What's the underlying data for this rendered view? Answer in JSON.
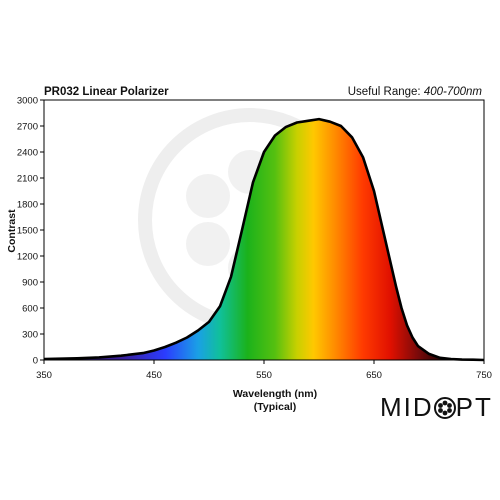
{
  "header": {
    "title": "PR032 Linear Polarizer",
    "useful_range_label": "Useful Range: ",
    "useful_range_value": "400-700nm"
  },
  "logo": {
    "text_left": "MID",
    "text_right": "PT"
  },
  "chart_data": {
    "type": "area",
    "title": "PR032 Linear Polarizer",
    "xlabel": "Wavelength (nm)",
    "xlabel_sub": "(Typical)",
    "ylabel": "Contrast",
    "xlim": [
      350,
      750
    ],
    "ylim": [
      0,
      3000
    ],
    "xticks": [
      350,
      450,
      550,
      650,
      750
    ],
    "yticks": [
      0,
      300,
      600,
      900,
      1200,
      1500,
      1800,
      2100,
      2400,
      2700,
      3000
    ],
    "grid": false,
    "fill": "visible-spectrum gradient",
    "series": [
      {
        "x": [
          350,
          380,
          400,
          420,
          440,
          450,
          460,
          470,
          480,
          490,
          500,
          510,
          520,
          530,
          540,
          550,
          560,
          570,
          580,
          590,
          600,
          610,
          620,
          630,
          640,
          650,
          660,
          670,
          675,
          680,
          685,
          690,
          700,
          710,
          720,
          730,
          740,
          750
        ],
        "values": [
          10,
          20,
          30,
          50,
          80,
          110,
          150,
          200,
          260,
          340,
          440,
          620,
          960,
          1500,
          2050,
          2400,
          2590,
          2690,
          2740,
          2760,
          2780,
          2750,
          2700,
          2570,
          2340,
          1950,
          1400,
          850,
          600,
          400,
          260,
          160,
          70,
          25,
          10,
          5,
          3,
          0
        ]
      }
    ]
  }
}
